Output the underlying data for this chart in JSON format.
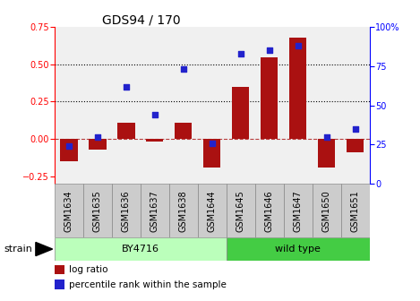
{
  "title": "GDS94 / 170",
  "samples": [
    "GSM1634",
    "GSM1635",
    "GSM1636",
    "GSM1637",
    "GSM1638",
    "GSM1644",
    "GSM1645",
    "GSM1646",
    "GSM1647",
    "GSM1650",
    "GSM1651"
  ],
  "log_ratio": [
    -0.15,
    -0.07,
    0.11,
    -0.02,
    0.11,
    -0.19,
    0.35,
    0.55,
    0.68,
    -0.19,
    -0.09
  ],
  "percentile_rank": [
    24,
    30,
    62,
    44,
    73,
    26,
    83,
    85,
    88,
    30,
    35
  ],
  "bar_color": "#aa1111",
  "dot_color": "#2222cc",
  "ylim_left": [
    -0.3,
    0.75
  ],
  "ylim_right": [
    0,
    100
  ],
  "yticks_left": [
    -0.25,
    0,
    0.25,
    0.5,
    0.75
  ],
  "yticks_right": [
    0,
    25,
    50,
    75,
    100
  ],
  "hlines": [
    0.25,
    0.5
  ],
  "zero_line": 0.0,
  "group1_label": "BY4716",
  "group2_label": "wild type",
  "group1_indices": [
    0,
    1,
    2,
    3,
    4,
    5
  ],
  "group2_indices": [
    6,
    7,
    8,
    9,
    10
  ],
  "strain_label": "strain",
  "legend_bar": "log ratio",
  "legend_dot": "percentile rank within the sample",
  "bg_color": "#ffffff",
  "plot_bg": "#f0f0f0",
  "group1_color": "#bbffbb",
  "group2_color": "#44cc44",
  "title_fontsize": 10,
  "tick_fontsize": 7,
  "label_fontsize": 8,
  "cell_bg": "#cccccc",
  "cell_border": "#888888"
}
